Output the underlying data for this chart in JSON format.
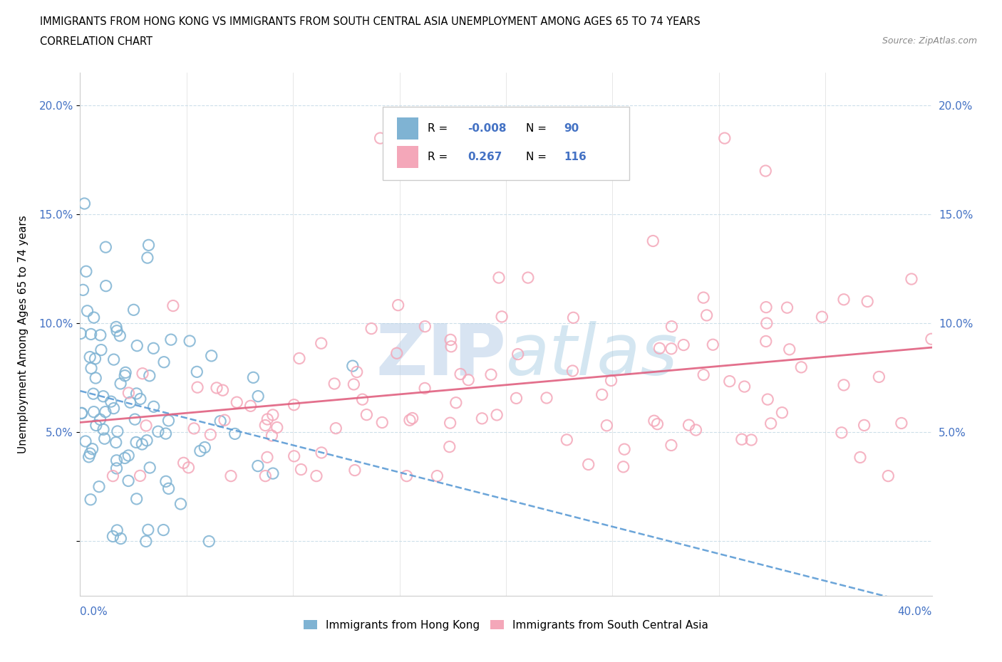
{
  "title_line1": "IMMIGRANTS FROM HONG KONG VS IMMIGRANTS FROM SOUTH CENTRAL ASIA UNEMPLOYMENT AMONG AGES 65 TO 74 YEARS",
  "title_line2": "CORRELATION CHART",
  "source": "Source: ZipAtlas.com",
  "ylabel": "Unemployment Among Ages 65 to 74 years",
  "legend_label1": "Immigrants from Hong Kong",
  "legend_label2": "Immigrants from South Central Asia",
  "R1": -0.008,
  "N1": 90,
  "R2": 0.267,
  "N2": 116,
  "xlim": [
    0.0,
    0.4
  ],
  "ylim": [
    -0.025,
    0.215
  ],
  "yticks": [
    0.0,
    0.05,
    0.1,
    0.15,
    0.2
  ],
  "ytick_labels": [
    "",
    "5.0%",
    "10.0%",
    "15.0%",
    "20.0%"
  ],
  "color_hk": "#7fb3d3",
  "color_sca": "#f4a7b9",
  "watermark_color": "#c8dff0",
  "background_color": "#ffffff",
  "grid_color": "#c8dce8",
  "tick_label_color": "#4472c4"
}
